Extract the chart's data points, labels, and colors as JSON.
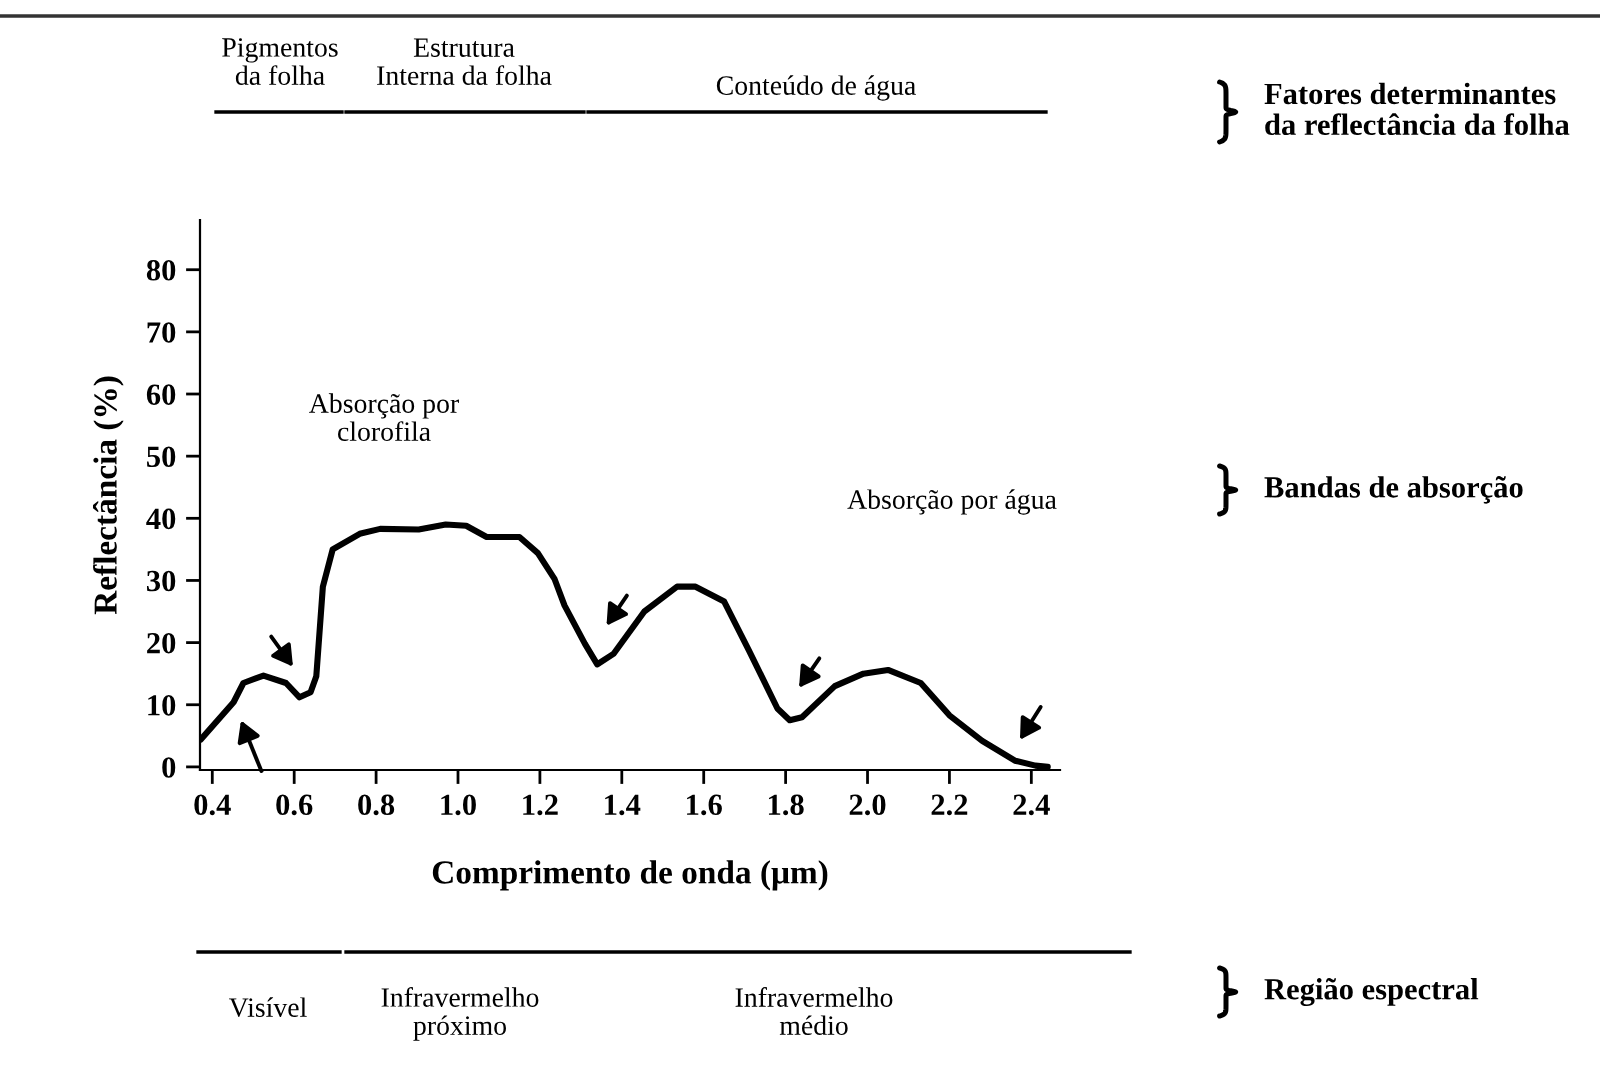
{
  "chart_data": {
    "type": "line",
    "xlabel": "Comprimento de onda (μm)",
    "ylabel": "Reflectância (%)",
    "x": [
      0.372,
      0.452,
      0.476,
      0.525,
      0.58,
      0.613,
      0.64,
      0.654,
      0.67,
      0.694,
      0.76,
      0.81,
      0.904,
      0.97,
      1.02,
      1.07,
      1.15,
      1.195,
      1.236,
      1.26,
      1.31,
      1.34,
      1.38,
      1.455,
      1.535,
      1.58,
      1.65,
      1.71,
      1.78,
      1.81,
      1.84,
      1.92,
      1.99,
      2.05,
      2.13,
      2.2,
      2.28,
      2.36,
      2.41,
      2.44
    ],
    "series": [
      {
        "color": "#000000",
        "values": [
          4.4,
          10.4,
          13.5,
          14.7,
          13.5,
          11.2,
          12,
          14.6,
          29,
          35,
          37.5,
          38.3,
          38.2,
          39,
          38.8,
          37,
          37,
          34.4,
          30.2,
          26,
          19.8,
          16.5,
          18.2,
          25,
          29,
          29,
          26.6,
          18.8,
          9.4,
          7.5,
          8,
          13,
          15,
          15.6,
          13.5,
          8.3,
          4.2,
          1,
          0.2,
          0
        ]
      }
    ],
    "xlim": [
      0.37,
      2.47
    ],
    "ylim": [
      -0.5,
      88
    ],
    "xticks": [
      {
        "value": 0.4,
        "label": "0.4"
      },
      {
        "value": 0.6,
        "label": "0.6"
      },
      {
        "value": 0.8,
        "label": "0.8"
      },
      {
        "value": 1.0,
        "label": "1.0"
      },
      {
        "value": 1.2,
        "label": "1.2"
      },
      {
        "value": 1.4,
        "label": "1.4"
      },
      {
        "value": 1.6,
        "label": "1.6"
      },
      {
        "value": 1.8,
        "label": "1.8"
      },
      {
        "value": 2.0,
        "label": "2.0"
      },
      {
        "value": 2.2,
        "label": "2.2"
      },
      {
        "value": 2.4,
        "label": "2.4"
      }
    ],
    "yticks": [
      0,
      10,
      20,
      30,
      40,
      50,
      60,
      70,
      80
    ],
    "grid": false,
    "legend": false,
    "marker": "none",
    "line_style": "solid",
    "annotations": [
      "Pigmentos\nda folha",
      "Estrutura\nInterna da folha",
      "Conteúdo de água",
      "Fatores determinantes\nda reflectância da folha",
      "Absorção por\nclorofila",
      "Absorção por água",
      "Bandas de absorção",
      "Visível",
      "Infravermelho\npróximo",
      "Infravermelho\nmédio",
      "Região espectral"
    ]
  }
}
